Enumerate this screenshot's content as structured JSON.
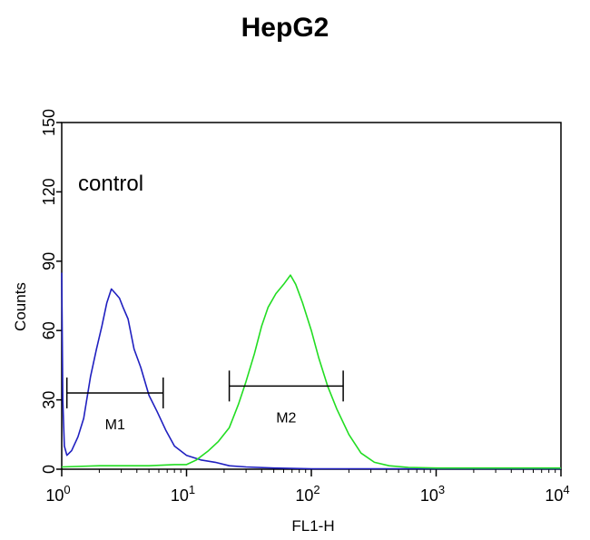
{
  "chart_data": {
    "type": "line",
    "title": "HepG2",
    "xlabel": "FL1-H",
    "ylabel": "Counts",
    "x_scale": "log",
    "xlim": [
      1,
      10000
    ],
    "ylim": [
      0,
      150
    ],
    "x_ticks": [
      {
        "value": 1,
        "base": "10",
        "exp": "0"
      },
      {
        "value": 10,
        "base": "10",
        "exp": "1"
      },
      {
        "value": 100,
        "base": "10",
        "exp": "2"
      },
      {
        "value": 1000,
        "base": "10",
        "exp": "3"
      },
      {
        "value": 10000,
        "base": "10",
        "exp": "4"
      }
    ],
    "y_ticks": [
      {
        "value": 0,
        "label": "0"
      },
      {
        "value": 30,
        "label": "30"
      },
      {
        "value": 60,
        "label": "60"
      },
      {
        "value": 90,
        "label": "90"
      },
      {
        "value": 120,
        "label": "120"
      },
      {
        "value": 150,
        "label": "150"
      }
    ],
    "annotation": "control",
    "series": [
      {
        "color": "#2020c0",
        "points": [
          [
            1.0,
            85
          ],
          [
            1.02,
            30
          ],
          [
            1.05,
            10
          ],
          [
            1.1,
            6
          ],
          [
            1.2,
            8
          ],
          [
            1.35,
            14
          ],
          [
            1.5,
            22
          ],
          [
            1.7,
            40
          ],
          [
            1.9,
            52
          ],
          [
            2.1,
            62
          ],
          [
            2.3,
            72
          ],
          [
            2.5,
            78
          ],
          [
            2.7,
            76
          ],
          [
            2.9,
            74
          ],
          [
            3.1,
            70
          ],
          [
            3.4,
            65
          ],
          [
            3.8,
            52
          ],
          [
            4.3,
            44
          ],
          [
            5.0,
            32
          ],
          [
            5.8,
            25
          ],
          [
            6.8,
            17
          ],
          [
            8.0,
            10
          ],
          [
            10,
            6
          ],
          [
            13,
            4
          ],
          [
            17,
            3
          ],
          [
            22,
            1.5
          ],
          [
            30,
            1
          ],
          [
            50,
            0.5
          ],
          [
            100,
            0.2
          ],
          [
            1000,
            0.2
          ],
          [
            10000,
            0.2
          ]
        ]
      },
      {
        "color": "#22dd22",
        "points": [
          [
            1.0,
            1
          ],
          [
            2,
            1.5
          ],
          [
            5,
            1.5
          ],
          [
            8,
            2
          ],
          [
            10,
            2
          ],
          [
            12,
            4
          ],
          [
            15,
            8
          ],
          [
            18,
            12
          ],
          [
            22,
            18
          ],
          [
            26,
            28
          ],
          [
            30,
            38
          ],
          [
            35,
            50
          ],
          [
            40,
            62
          ],
          [
            45,
            70
          ],
          [
            52,
            76
          ],
          [
            60,
            80
          ],
          [
            68,
            84
          ],
          [
            75,
            80
          ],
          [
            85,
            72
          ],
          [
            100,
            60
          ],
          [
            115,
            48
          ],
          [
            135,
            36
          ],
          [
            160,
            26
          ],
          [
            200,
            15
          ],
          [
            250,
            7
          ],
          [
            320,
            3
          ],
          [
            420,
            1.5
          ],
          [
            600,
            0.8
          ],
          [
            1000,
            0.5
          ],
          [
            10000,
            0.5
          ]
        ]
      }
    ],
    "markers": [
      {
        "label": "M1",
        "x_start": 1.1,
        "x_end": 6.5,
        "y": 33
      },
      {
        "label": "M2",
        "x_start": 22,
        "x_end": 180,
        "y": 36
      }
    ]
  }
}
